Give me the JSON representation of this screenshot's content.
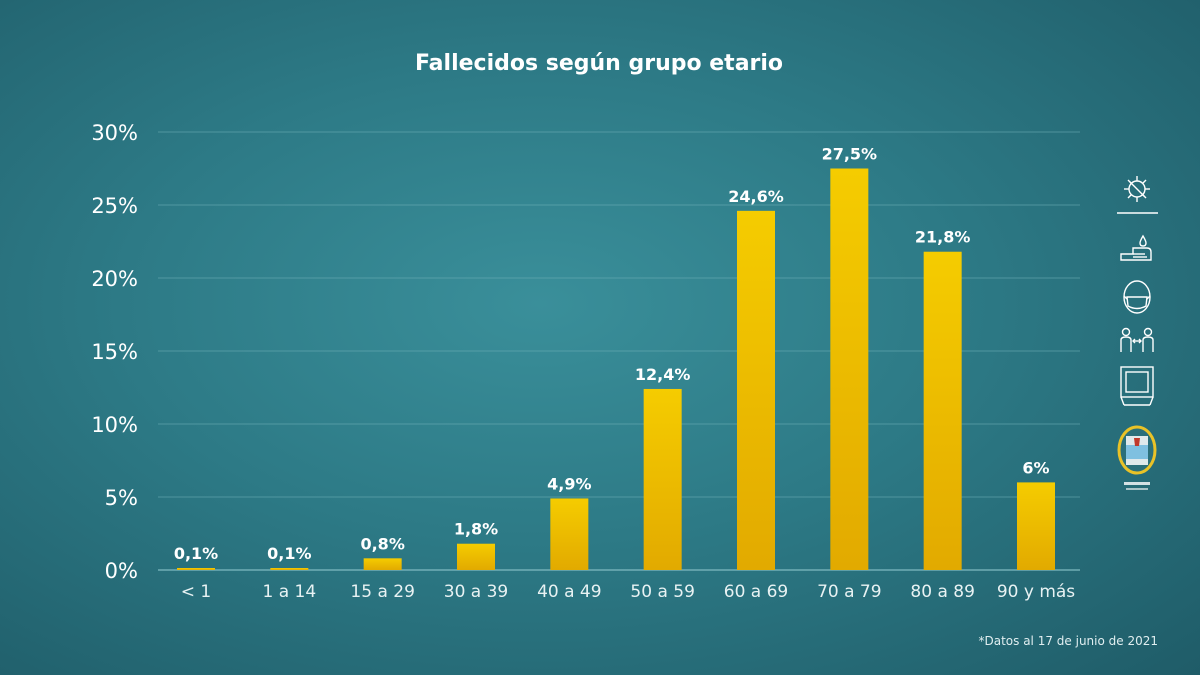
{
  "colors": {
    "bar": "#f2c500",
    "bar_bottom": "#e0a800",
    "background": "#2d7a86",
    "grid": "#6fb0b8",
    "text": "#ffffff"
  },
  "side_icons": [
    "virus-icon",
    "hand-washing-icon",
    "face-mask-icon",
    "social-distance-icon",
    "window-ventilation-icon",
    "government-seal-icon"
  ],
  "footnote": "*Datos al 17 de junio de 2021",
  "chart_data": {
    "type": "bar",
    "title": "Fallecidos según grupo etario",
    "xlabel": "",
    "ylabel": "",
    "categories": [
      "< 1",
      "1 a 14",
      "15 a 29",
      "30 a 39",
      "40 a 49",
      "50 a 59",
      "60 a 69",
      "70 a 79",
      "80 a 89",
      "90 y más"
    ],
    "values": [
      0.1,
      0.1,
      0.8,
      1.8,
      4.9,
      12.4,
      24.6,
      27.5,
      21.8,
      6
    ],
    "value_labels": [
      "0,1%",
      "0,1%",
      "0,8%",
      "1,8%",
      "4,9%",
      "12,4%",
      "24,6%",
      "27,5%",
      "21,8%",
      "6%"
    ],
    "ylim": [
      0,
      30
    ],
    "yticks": [
      0,
      5,
      10,
      15,
      20,
      25,
      30
    ],
    "ytick_labels": [
      "0%",
      "5%",
      "10%",
      "15%",
      "20%",
      "25%",
      "30%"
    ],
    "grid": true,
    "legend": "none"
  }
}
